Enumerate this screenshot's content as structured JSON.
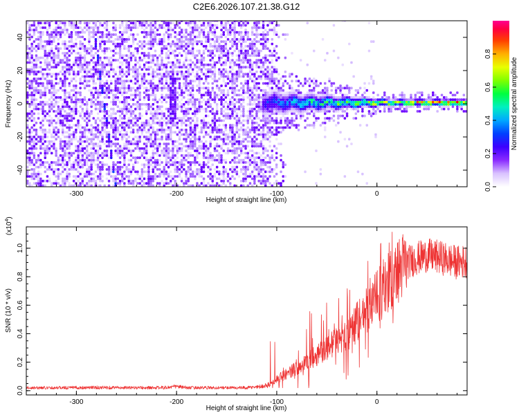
{
  "title": "C2E6.2026.107.21.38.G12",
  "chart_data": [
    {
      "type": "heatmap",
      "name": "spectrogram",
      "xlabel": "Height of straight line (km)",
      "ylabel": "Frequency (Hz)",
      "xlim": [
        -350,
        90
      ],
      "ylim": [
        -50,
        50
      ],
      "x_ticks": [
        -300,
        -200,
        -100,
        0
      ],
      "x_tick_labels": [
        "-300",
        "-200",
        "-100",
        "0"
      ],
      "y_ticks": [
        -40,
        -20,
        0,
        20,
        40
      ],
      "y_tick_labels": [
        "-40",
        "-20",
        "0",
        "20",
        "40"
      ],
      "colorbar": {
        "label": "Normalized spectral amplitude",
        "range": [
          0,
          1
        ],
        "ticks": [
          0.0,
          0.2,
          0.4,
          0.6,
          0.8
        ],
        "tick_labels": [
          "0.0",
          "0.2",
          "0.4",
          "0.6",
          "0.8"
        ],
        "colors": [
          "#ffffff",
          "#c8a8ff",
          "#6a00ff",
          "#1a1aff",
          "#00c8ff",
          "#00ff80",
          "#80ff00",
          "#ffff00",
          "#ff8000",
          "#ff0000",
          "#ff00aa"
        ]
      },
      "features": [
        {
          "name": "noise-field",
          "x_range": [
            -350,
            -100
          ],
          "freq_range": [
            -50,
            50
          ],
          "amplitude": 0.1
        },
        {
          "name": "dominant-signal",
          "x_range": [
            -115,
            85
          ],
          "center_freq": 0,
          "freq_halfwidth_start": 5,
          "freq_halfwidth_end": 1.5,
          "amplitude_start": 0.3,
          "amplitude_end": 0.9
        },
        {
          "name": "doppler-streak",
          "x_start": -280,
          "freq_start": 28,
          "x_end": -262,
          "freq_end": -50,
          "amplitude": 0.22
        },
        {
          "name": "vertical-streak",
          "x": -205,
          "freq_range": [
            -10,
            15
          ],
          "amplitude": 0.18
        }
      ]
    },
    {
      "type": "line",
      "name": "snr",
      "xlabel": "Height of straight line (km)",
      "ylabel": "SNR (10 * v/v)",
      "y_multiplier": "(x10",
      "y_multiplier_exponent": "4",
      "y_multiplier_close": ")",
      "xlim": [
        -350,
        90
      ],
      "ylim": [
        -0.03,
        1.15
      ],
      "x_ticks": [
        -300,
        -200,
        -100,
        0
      ],
      "x_tick_labels": [
        "-300",
        "-200",
        "-100",
        "0"
      ],
      "y_ticks": [
        0.0,
        0.2,
        0.4,
        0.6,
        0.8,
        1.0
      ],
      "y_tick_labels": [
        "0.0",
        "0.2",
        "0.4",
        "0.6",
        "0.8",
        "1.0"
      ],
      "color": "#ee3333",
      "series": [
        {
          "name": "SNR",
          "x": [
            -350,
            -330,
            -310,
            -290,
            -270,
            -250,
            -230,
            -210,
            -200,
            -190,
            -170,
            -150,
            -130,
            -115,
            -105,
            -100,
            -90,
            -80,
            -70,
            -60,
            -50,
            -40,
            -30,
            -25,
            -20,
            -15,
            -10,
            -5,
            0,
            5,
            10,
            15,
            20,
            25,
            30,
            40,
            50,
            60,
            70,
            80,
            90
          ],
          "y": [
            0.02,
            0.02,
            0.02,
            0.022,
            0.022,
            0.02,
            0.02,
            0.022,
            0.03,
            0.02,
            0.02,
            0.02,
            0.02,
            0.03,
            0.05,
            0.08,
            0.12,
            0.16,
            0.2,
            0.25,
            0.3,
            0.35,
            0.38,
            0.42,
            0.48,
            0.53,
            0.57,
            0.62,
            0.65,
            0.7,
            0.75,
            0.78,
            0.83,
            0.87,
            0.9,
            0.93,
            0.95,
            0.94,
            0.92,
            0.9,
            0.91
          ]
        }
      ]
    }
  ]
}
